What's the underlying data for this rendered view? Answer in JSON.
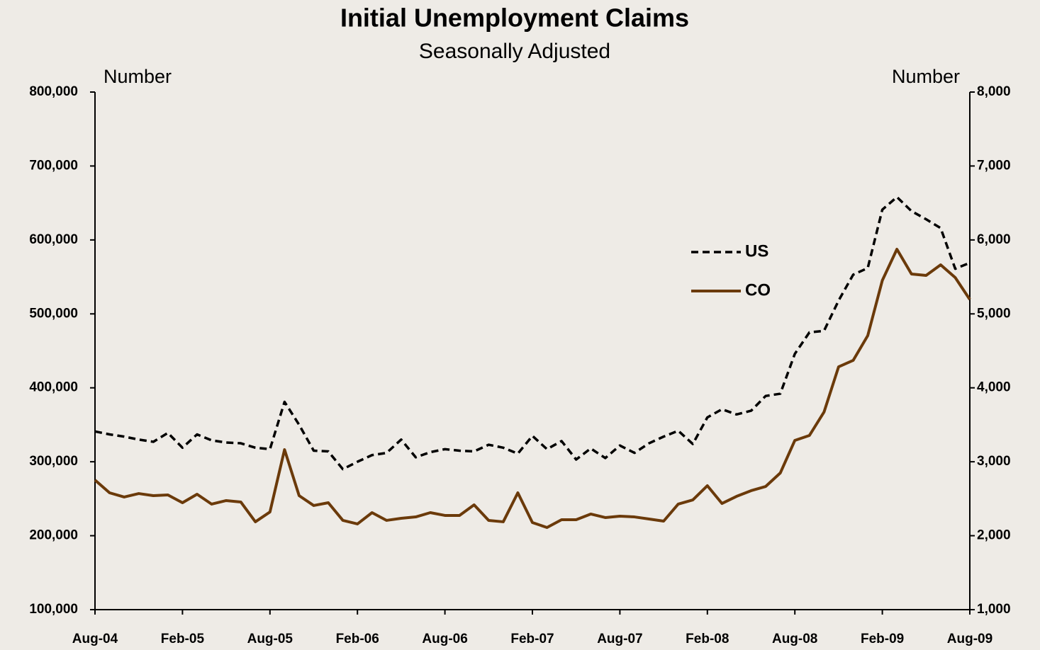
{
  "chart_data": {
    "type": "line",
    "title": "Initial Unemployment Claims",
    "subtitle": "Seasonally Adjusted",
    "ylabel": "Number",
    "y2label": "Number",
    "categories": [
      "Aug-04",
      null,
      null,
      null,
      null,
      null,
      "Feb-05",
      null,
      null,
      null,
      null,
      null,
      "Aug-05",
      null,
      null,
      null,
      null,
      null,
      "Feb-06",
      null,
      null,
      null,
      null,
      null,
      "Aug-06",
      null,
      null,
      null,
      null,
      null,
      "Feb-07",
      null,
      null,
      null,
      null,
      null,
      "Aug-07",
      null,
      null,
      null,
      null,
      null,
      "Feb-08",
      null,
      null,
      null,
      null,
      null,
      "Aug-08",
      null,
      null,
      null,
      null,
      null,
      "Feb-09",
      null,
      null,
      null,
      null,
      null,
      "Aug-09"
    ],
    "series": [
      {
        "name": "US",
        "color": "#000000",
        "dash": true,
        "axis": "y",
        "values": [
          341000,
          337000,
          334000,
          330000,
          327000,
          339000,
          319000,
          337000,
          329000,
          326000,
          325000,
          319000,
          317000,
          381000,
          350000,
          315000,
          314000,
          290000,
          300000,
          309000,
          312000,
          330000,
          306000,
          313000,
          317000,
          315000,
          314000,
          323000,
          319000,
          311000,
          335000,
          317000,
          328000,
          303000,
          318000,
          305000,
          322000,
          312000,
          325000,
          334000,
          342000,
          324000,
          360000,
          371000,
          364000,
          369000,
          389000,
          392000,
          446000,
          475000,
          477000,
          518000,
          553000,
          562000,
          641000,
          658000,
          639000,
          628000,
          616000,
          561000,
          569000
        ]
      },
      {
        "name": "CO",
        "color": "#6b3a0a",
        "dash": false,
        "axis": "y2",
        "values": [
          2752,
          2580,
          2523,
          2570,
          2542,
          2551,
          2446,
          2561,
          2427,
          2475,
          2456,
          2188,
          2321,
          3164,
          2542,
          2408,
          2446,
          2207,
          2159,
          2312,
          2207,
          2235,
          2254,
          2312,
          2274,
          2274,
          2417,
          2207,
          2188,
          2580,
          2178,
          2111,
          2216,
          2216,
          2293,
          2245,
          2264,
          2254,
          2226,
          2197,
          2427,
          2484,
          2676,
          2436,
          2532,
          2609,
          2666,
          2848,
          3289,
          3356,
          3672,
          4284,
          4371,
          4706,
          5453,
          5874,
          5539,
          5520,
          5663,
          5491,
          5194
        ]
      }
    ],
    "ylim": [
      100000,
      800000
    ],
    "yticks": [
      {
        "value": 100000,
        "label": "100,000"
      },
      {
        "value": 200000,
        "label": "200,000"
      },
      {
        "value": 300000,
        "label": "300,000"
      },
      {
        "value": 400000,
        "label": "400,000"
      },
      {
        "value": 500000,
        "label": "500,000"
      },
      {
        "value": 600000,
        "label": "600,000"
      },
      {
        "value": 700000,
        "label": "700,000"
      },
      {
        "value": 800000,
        "label": "800,000"
      }
    ],
    "y2lim": [
      1000,
      8000
    ],
    "y2ticks": [
      {
        "value": 1000,
        "label": "1,000"
      },
      {
        "value": 2000,
        "label": "2,000"
      },
      {
        "value": 3000,
        "label": "3,000"
      },
      {
        "value": 4000,
        "label": "4,000"
      },
      {
        "value": 5000,
        "label": "5,000"
      },
      {
        "value": 6000,
        "label": "6,000"
      },
      {
        "value": 7000,
        "label": "7,000"
      },
      {
        "value": 8000,
        "label": "8,000"
      }
    ],
    "grid": false,
    "legend": "center-right"
  }
}
